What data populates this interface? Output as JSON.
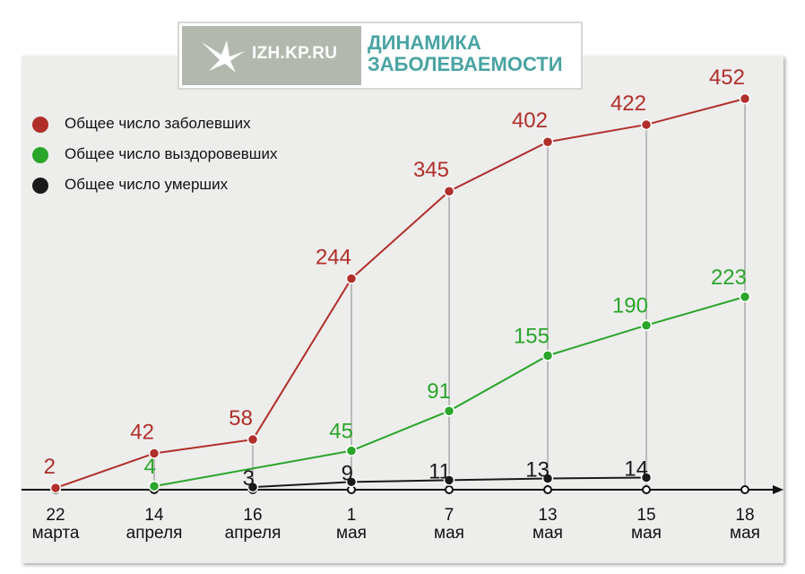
{
  "header": {
    "logo_text": "IZH.KP.RU",
    "title": "ДИНАМИКА ЗАБОЛЕВАЕМОСТИ"
  },
  "colors": {
    "cases": "#b02f2a",
    "recovered": "#2aa52a",
    "deaths": "#1a1a1a",
    "title": "#4aa3a3",
    "logo_bg": "#b2b8ae"
  },
  "chart_data": {
    "type": "line",
    "title": "ДИНАМИКА ЗАБОЛЕВАЕМОСТИ",
    "categories": [
      "22 марта",
      "14 апреля",
      "16 апреля",
      "1 мая",
      "7 мая",
      "13 мая",
      "15 мая",
      "18 мая"
    ],
    "category_lines": [
      [
        "22",
        "марта"
      ],
      [
        "14",
        "апреля"
      ],
      [
        "16",
        "апреля"
      ],
      [
        "1",
        "мая"
      ],
      [
        "7",
        "мая"
      ],
      [
        "13",
        "мая"
      ],
      [
        "15",
        "мая"
      ],
      [
        "18",
        "мая"
      ]
    ],
    "series": [
      {
        "name": "Общее число заболевших",
        "color": "#b02f2a",
        "values": [
          2,
          42,
          58,
          244,
          345,
          402,
          422,
          452
        ]
      },
      {
        "name": "Общее число выздоровевших",
        "color": "#2aa52a",
        "values": [
          null,
          4,
          null,
          45,
          91,
          155,
          190,
          223
        ]
      },
      {
        "name": "Общее число умерших",
        "color": "#1a1a1a",
        "values": [
          null,
          null,
          3,
          9,
          11,
          13,
          14,
          null
        ]
      }
    ],
    "ylim": [
      0,
      452
    ],
    "grid": false,
    "legend_position": "top-left"
  }
}
